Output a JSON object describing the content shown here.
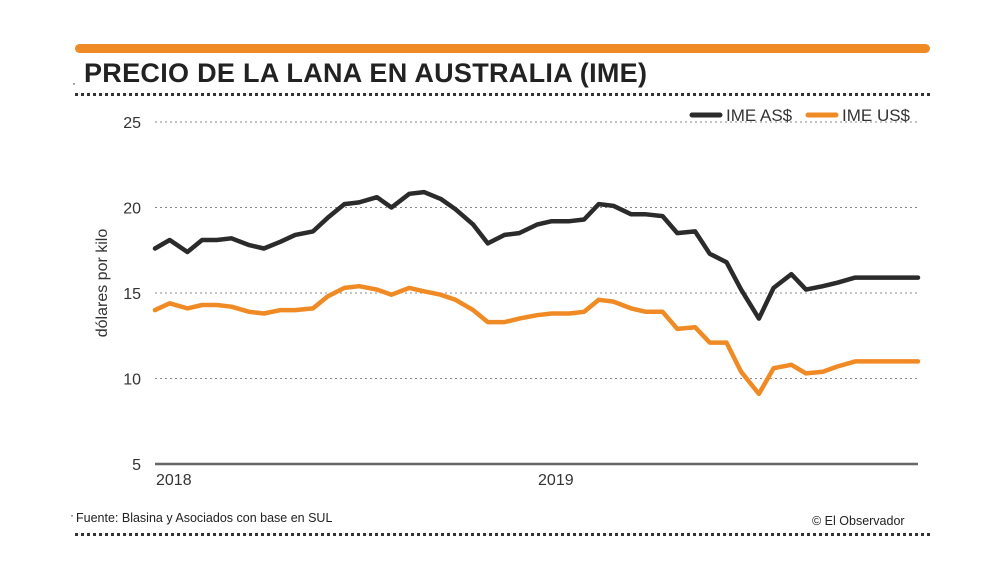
{
  "title": "PRECIO DE LA LANA EN AUSTRALIA (IME)",
  "source": "Fuente: Blasina y Asociados con base en SUL",
  "credit": "© El Observador",
  "colors": {
    "accent": "#f08a24",
    "dark": "#2b2b2b"
  },
  "chart_data": {
    "type": "line",
    "title": "PRECIO DE LA LANA EN AUSTRALIA (IME)",
    "ylabel": "dólares por kilo",
    "xlabel": "",
    "ylim": [
      5,
      25
    ],
    "yticks": [
      5,
      10,
      15,
      20,
      25
    ],
    "xlim": [
      "2018-01-01",
      "2019-12-31"
    ],
    "xticks": [
      {
        "label": "2018",
        "date": "2018-01-01"
      },
      {
        "label": "2019",
        "date": "2019-01-01"
      }
    ],
    "grid": true,
    "legend_position": "top-right",
    "x": [
      "2018-01-01",
      "2018-01-15",
      "2018-02-01",
      "2018-02-15",
      "2018-03-01",
      "2018-03-15",
      "2018-04-01",
      "2018-04-15",
      "2018-05-01",
      "2018-05-15",
      "2018-06-01",
      "2018-06-15",
      "2018-07-01",
      "2018-07-15",
      "2018-08-01",
      "2018-08-15",
      "2018-09-01",
      "2018-09-15",
      "2018-10-01",
      "2018-10-15",
      "2018-11-01",
      "2018-11-15",
      "2018-12-01",
      "2018-12-15",
      "2019-01-01",
      "2019-01-15",
      "2019-02-01",
      "2019-02-15",
      "2019-03-01",
      "2019-03-15",
      "2019-04-01",
      "2019-04-15",
      "2019-05-01",
      "2019-05-15",
      "2019-06-01",
      "2019-06-15",
      "2019-07-01",
      "2019-07-15",
      "2019-08-01",
      "2019-08-15",
      "2019-09-01",
      "2019-09-15",
      "2019-10-01",
      "2019-10-15",
      "2019-11-01",
      "2019-11-15",
      "2019-12-01",
      "2019-12-15",
      "2019-12-31"
    ],
    "series": [
      {
        "name": "IME AS$",
        "color": "#2b2b2b",
        "values": [
          17.6,
          18.1,
          17.4,
          18.1,
          18.1,
          18.2,
          17.8,
          17.6,
          18.0,
          18.4,
          18.6,
          19.4,
          20.2,
          20.3,
          20.6,
          20.0,
          20.8,
          20.9,
          20.5,
          19.9,
          19.0,
          17.9,
          18.4,
          18.5,
          19.0,
          19.2,
          19.2,
          19.3,
          20.2,
          20.1,
          19.6,
          19.6,
          19.5,
          18.5,
          18.6,
          17.3,
          16.8,
          15.2,
          13.5,
          15.3,
          16.1,
          15.2,
          15.4,
          15.6,
          15.9,
          15.9,
          15.9,
          15.9,
          15.9
        ]
      },
      {
        "name": "IME US$",
        "color": "#f08a24",
        "values": [
          14.0,
          14.4,
          14.1,
          14.3,
          14.3,
          14.2,
          13.9,
          13.8,
          14.0,
          14.0,
          14.1,
          14.8,
          15.3,
          15.4,
          15.2,
          14.9,
          15.3,
          15.1,
          14.9,
          14.6,
          14.0,
          13.3,
          13.3,
          13.5,
          13.7,
          13.8,
          13.8,
          13.9,
          14.6,
          14.5,
          14.1,
          13.9,
          13.9,
          12.9,
          13.0,
          12.1,
          12.1,
          10.4,
          9.1,
          10.6,
          10.8,
          10.3,
          10.4,
          10.7,
          11.0,
          11.0,
          11.0,
          11.0,
          11.0
        ]
      }
    ]
  }
}
